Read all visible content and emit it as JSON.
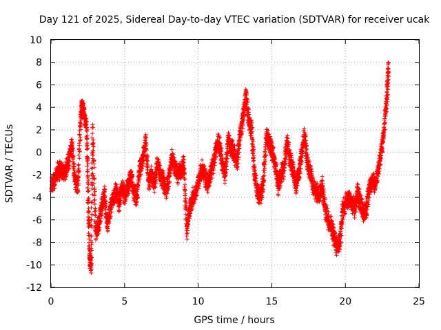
{
  "chart_data": {
    "type": "scatter",
    "title": "Day 121 of 2025, Sidereal Day-to-day VTEC variation (SDTVAR) for receiver ucak",
    "xlabel": "GPS time / hours",
    "ylabel": "SDTVAR / TECUs",
    "xlim": [
      0,
      25
    ],
    "ylim": [
      -12,
      10
    ],
    "x_ticks": [
      0,
      5,
      10,
      15,
      20,
      25
    ],
    "y_ticks": [
      -12,
      -10,
      -8,
      -6,
      -4,
      -2,
      0,
      2,
      4,
      6,
      8,
      10
    ],
    "grid": true,
    "marker": "+",
    "color": "#ff0000",
    "series": [
      {
        "name": "SDTVAR",
        "description_of_trace": "approximate traced envelope of the dense point cloud",
        "x": [
          0.0,
          0.2,
          0.4,
          0.6,
          0.8,
          1.0,
          1.2,
          1.4,
          1.6,
          1.8,
          2.0,
          2.1,
          2.2,
          2.4,
          2.5,
          2.6,
          2.7,
          2.8,
          3.0,
          3.2,
          3.4,
          3.6,
          3.8,
          4.0,
          4.2,
          4.4,
          4.6,
          4.8,
          5.0,
          5.2,
          5.4,
          5.6,
          5.8,
          6.0,
          6.2,
          6.4,
          6.6,
          6.8,
          7.0,
          7.2,
          7.4,
          7.6,
          7.8,
          8.0,
          8.2,
          8.4,
          8.6,
          8.8,
          9.0,
          9.2,
          9.4,
          9.6,
          9.8,
          10.0,
          10.2,
          10.4,
          10.6,
          10.8,
          11.0,
          11.2,
          11.4,
          11.6,
          11.8,
          12.0,
          12.2,
          12.4,
          12.6,
          12.8,
          13.0,
          13.2,
          13.4,
          13.6,
          13.8,
          14.0,
          14.2,
          14.4,
          14.6,
          14.8,
          15.0,
          15.2,
          15.4,
          15.6,
          15.8,
          16.0,
          16.2,
          16.4,
          16.6,
          16.8,
          17.0,
          17.2,
          17.4,
          17.6,
          17.8,
          18.0,
          18.2,
          18.4,
          18.6,
          18.8,
          19.0,
          19.2,
          19.4,
          19.6,
          19.8,
          20.0,
          20.2,
          20.4,
          20.6,
          20.8,
          21.0,
          21.2,
          21.4,
          21.6,
          21.8,
          22.0,
          22.2,
          22.4,
          22.6,
          22.8,
          22.9
        ],
        "y": [
          -3.0,
          -2.5,
          -1.8,
          -1.5,
          -2.0,
          -1.5,
          -0.5,
          0.5,
          -2.5,
          -3.0,
          3.5,
          4.0,
          3.8,
          2.0,
          -4.0,
          -9.5,
          -10.0,
          2.0,
          -7.0,
          -6.5,
          -5.0,
          -3.5,
          -6.5,
          -5.0,
          -4.0,
          -3.5,
          -4.5,
          -3.0,
          -4.0,
          -3.0,
          -2.0,
          -3.5,
          -4.0,
          -1.5,
          -0.5,
          1.0,
          -2.5,
          -2.0,
          -3.0,
          -1.0,
          -2.0,
          -2.5,
          -3.5,
          -2.0,
          -0.5,
          -1.5,
          -2.0,
          -1.5,
          -1.0,
          -7.0,
          -5.0,
          -4.0,
          -3.5,
          -2.5,
          -1.5,
          -2.0,
          -3.0,
          -2.0,
          -1.0,
          0.5,
          1.0,
          -1.0,
          -2.0,
          1.0,
          0.5,
          0.0,
          -1.0,
          1.5,
          3.0,
          5.0,
          3.0,
          2.0,
          -2.0,
          -3.5,
          -4.0,
          -2.5,
          1.5,
          1.0,
          0.0,
          -1.0,
          -3.0,
          -2.0,
          -1.5,
          1.0,
          -0.5,
          -1.5,
          -3.0,
          -2.0,
          0.0,
          1.5,
          -1.0,
          -2.0,
          -3.0,
          -3.5,
          -4.0,
          -3.0,
          -5.0,
          -6.0,
          -6.5,
          -7.5,
          -8.5,
          -8.0,
          -5.0,
          -4.5,
          -4.0,
          -4.5,
          -5.0,
          -3.5,
          -4.5,
          -5.5,
          -5.0,
          -3.0,
          -2.5,
          -3.0,
          -1.5,
          0.0,
          2.0,
          5.0,
          7.8
        ]
      }
    ]
  }
}
